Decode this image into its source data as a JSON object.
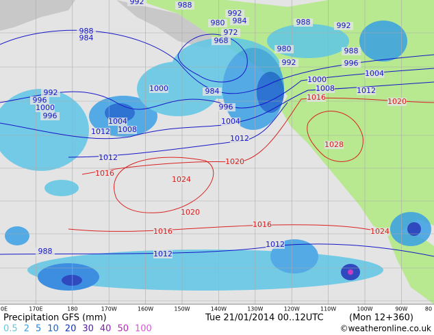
{
  "title": "Precipitation GFS (mm)",
  "valid_time": "Tue 21/01/2014 00..12UTC",
  "forecast_step": "(Mon 12+360)",
  "credit": "©weatheronline.co.uk",
  "legend": [
    {
      "label": "0.5",
      "color": "#5fc6e6"
    },
    {
      "label": "2",
      "color": "#3aa0e4"
    },
    {
      "label": "5",
      "color": "#2080e0"
    },
    {
      "label": "10",
      "color": "#1060d0"
    },
    {
      "label": "20",
      "color": "#1030b8"
    },
    {
      "label": "30",
      "color": "#5020a0"
    },
    {
      "label": "40",
      "color": "#8020a8"
    },
    {
      "label": "50",
      "color": "#c020c0"
    },
    {
      "label": "100",
      "color": "#e050e0"
    }
  ],
  "longitude_labels": [
    "0E",
    "170E",
    "180",
    "170W",
    "160W",
    "150W",
    "140W",
    "130W",
    "120W",
    "110W",
    "100W",
    "90W",
    "80"
  ],
  "isobar_sets": [
    {
      "color": "#1414c8",
      "labels": [
        "992",
        "988",
        "992",
        "984",
        "980",
        "972",
        "968",
        "988",
        "984",
        "988",
        "992",
        "980",
        "988",
        "992",
        "996",
        "1004",
        "1000",
        "1008",
        "1012",
        "1000",
        "984",
        "996",
        "1004",
        "1012",
        "1012",
        "1012",
        "1012",
        "988",
        "992",
        "996",
        "1000",
        "996",
        "1004",
        "1008",
        "1012"
      ]
    },
    {
      "color": "#d82020",
      "labels": [
        "1016",
        "1020",
        "1028",
        "1020",
        "1024",
        "1020",
        "1016",
        "1016",
        "1024",
        "1016"
      ]
    }
  ]
}
